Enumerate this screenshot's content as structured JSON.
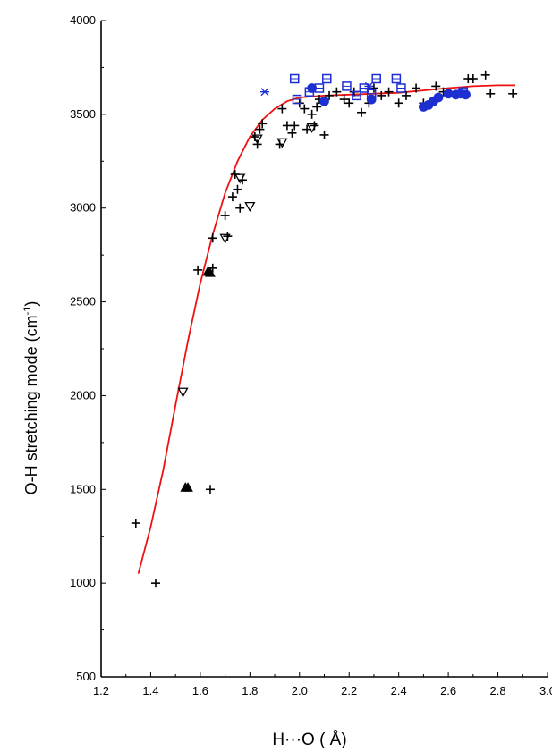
{
  "chart_data": {
    "type": "scatter",
    "title": "",
    "xlabel": "H···O ( Å)",
    "ylabel": "O-H stretching mode (cm",
    "ylabel_sup": "-1",
    "ylabel_close": ")",
    "xlim": [
      1.2,
      3.0
    ],
    "ylim": [
      500,
      4000
    ],
    "xticks": [
      "1.2",
      "1.4",
      "1.6",
      "1.8",
      "2.0",
      "2.2",
      "2.4",
      "2.6",
      "2.8",
      "3.0"
    ],
    "yticks": [
      "500",
      "1000",
      "1500",
      "2000",
      "2500",
      "3000",
      "3500",
      "4000"
    ],
    "grid": false,
    "legend": "none",
    "series": [
      {
        "marker": "plus",
        "color": "#000000",
        "points": [
          [
            1.34,
            1320
          ],
          [
            1.42,
            1000
          ],
          [
            1.64,
            1500
          ],
          [
            1.59,
            2670
          ],
          [
            1.65,
            2680
          ],
          [
            1.65,
            2840
          ],
          [
            1.7,
            2960
          ],
          [
            1.71,
            2850
          ],
          [
            1.73,
            3060
          ],
          [
            1.74,
            3180
          ],
          [
            1.75,
            3100
          ],
          [
            1.76,
            3000
          ],
          [
            1.77,
            3150
          ],
          [
            1.82,
            3380
          ],
          [
            1.83,
            3340
          ],
          [
            1.84,
            3420
          ],
          [
            1.85,
            3450
          ],
          [
            1.92,
            3340
          ],
          [
            1.93,
            3530
          ],
          [
            1.95,
            3440
          ],
          [
            1.97,
            3400
          ],
          [
            1.98,
            3440
          ],
          [
            2.0,
            3560
          ],
          [
            2.02,
            3530
          ],
          [
            2.03,
            3420
          ],
          [
            2.05,
            3500
          ],
          [
            2.06,
            3440
          ],
          [
            2.07,
            3540
          ],
          [
            2.08,
            3580
          ],
          [
            2.1,
            3390
          ],
          [
            2.12,
            3600
          ],
          [
            2.15,
            3620
          ],
          [
            2.18,
            3580
          ],
          [
            2.2,
            3560
          ],
          [
            2.22,
            3620
          ],
          [
            2.25,
            3510
          ],
          [
            2.28,
            3560
          ],
          [
            2.3,
            3640
          ],
          [
            2.33,
            3600
          ],
          [
            2.36,
            3620
          ],
          [
            2.4,
            3560
          ],
          [
            2.43,
            3600
          ],
          [
            2.47,
            3640
          ],
          [
            2.5,
            3560
          ],
          [
            2.55,
            3650
          ],
          [
            2.58,
            3620
          ],
          [
            2.68,
            3690
          ],
          [
            2.7,
            3690
          ],
          [
            2.75,
            3710
          ],
          [
            2.77,
            3610
          ],
          [
            2.86,
            3610
          ]
        ]
      },
      {
        "marker": "triangle-down-open",
        "color": "#000000",
        "points": [
          [
            1.53,
            2020
          ],
          [
            1.7,
            2840
          ],
          [
            1.76,
            3160
          ],
          [
            1.8,
            3010
          ],
          [
            1.83,
            3370
          ],
          [
            1.93,
            3350
          ],
          [
            2.05,
            3430
          ]
        ]
      },
      {
        "marker": "triangle-up-filled",
        "color": "#000000",
        "points": [
          [
            1.54,
            1510
          ],
          [
            1.55,
            1510
          ],
          [
            1.63,
            2660
          ],
          [
            1.64,
            2655
          ]
        ]
      },
      {
        "marker": "square-open",
        "color": "#1d2fd0",
        "points": [
          [
            1.98,
            3690
          ],
          [
            1.99,
            3580
          ],
          [
            2.04,
            3620
          ],
          [
            2.08,
            3640
          ],
          [
            2.11,
            3690
          ],
          [
            2.19,
            3650
          ],
          [
            2.23,
            3600
          ],
          [
            2.26,
            3640
          ],
          [
            2.29,
            3610
          ],
          [
            2.31,
            3690
          ],
          [
            2.39,
            3690
          ],
          [
            2.41,
            3640
          ],
          [
            2.66,
            3620
          ]
        ]
      },
      {
        "marker": "star",
        "color": "#1d2fd0",
        "points": [
          [
            1.86,
            3620
          ],
          [
            2.28,
            3650
          ]
        ]
      },
      {
        "marker": "circle-filled",
        "color": "#1d2fd0",
        "points": [
          [
            2.05,
            3640
          ],
          [
            2.1,
            3570
          ],
          [
            2.29,
            3580
          ],
          [
            2.5,
            3540
          ],
          [
            2.52,
            3550
          ],
          [
            2.54,
            3570
          ],
          [
            2.56,
            3590
          ],
          [
            2.6,
            3610
          ],
          [
            2.63,
            3605
          ],
          [
            2.65,
            3610
          ],
          [
            2.67,
            3605
          ]
        ]
      },
      {
        "type": "line",
        "color": "#ee1111",
        "points": [
          [
            1.35,
            1050
          ],
          [
            1.4,
            1300
          ],
          [
            1.45,
            1600
          ],
          [
            1.5,
            1950
          ],
          [
            1.55,
            2290
          ],
          [
            1.6,
            2600
          ],
          [
            1.65,
            2860
          ],
          [
            1.7,
            3080
          ],
          [
            1.75,
            3250
          ],
          [
            1.8,
            3380
          ],
          [
            1.85,
            3470
          ],
          [
            1.9,
            3530
          ],
          [
            1.95,
            3570
          ],
          [
            2.0,
            3590
          ],
          [
            2.1,
            3600
          ],
          [
            2.2,
            3605
          ],
          [
            2.4,
            3615
          ],
          [
            2.6,
            3640
          ],
          [
            2.7,
            3650
          ],
          [
            2.8,
            3655
          ],
          [
            2.87,
            3655
          ]
        ]
      }
    ]
  }
}
